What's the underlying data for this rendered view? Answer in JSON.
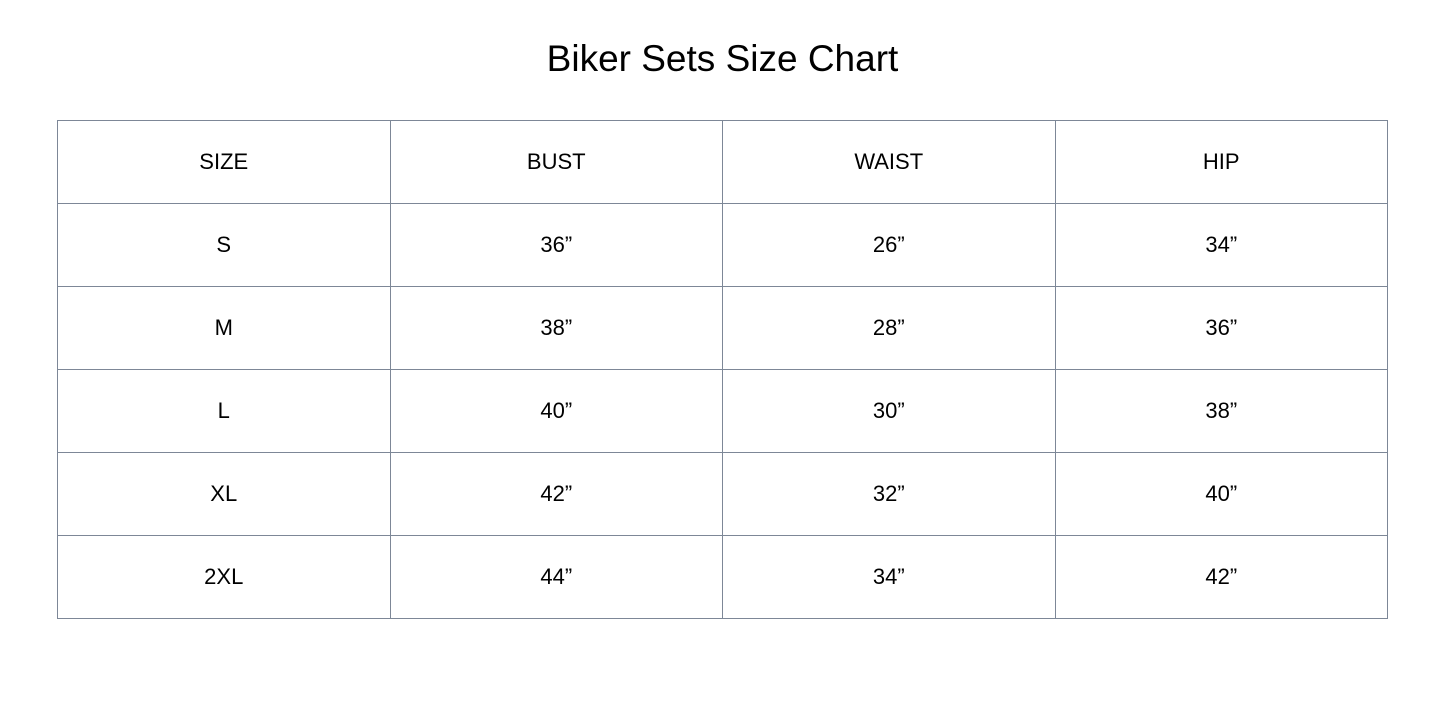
{
  "title": "Biker Sets Size Chart",
  "table": {
    "headers": [
      "SIZE",
      "BUST",
      "WAIST",
      "HIP"
    ],
    "rows": [
      [
        "S",
        "36”",
        "26”",
        "34”"
      ],
      [
        "M",
        "38”",
        "28”",
        "36”"
      ],
      [
        "L",
        "40”",
        "30”",
        "38”"
      ],
      [
        "XL",
        "42”",
        "32”",
        "40”"
      ],
      [
        "2XL",
        "44”",
        "34”",
        "42”"
      ]
    ]
  }
}
